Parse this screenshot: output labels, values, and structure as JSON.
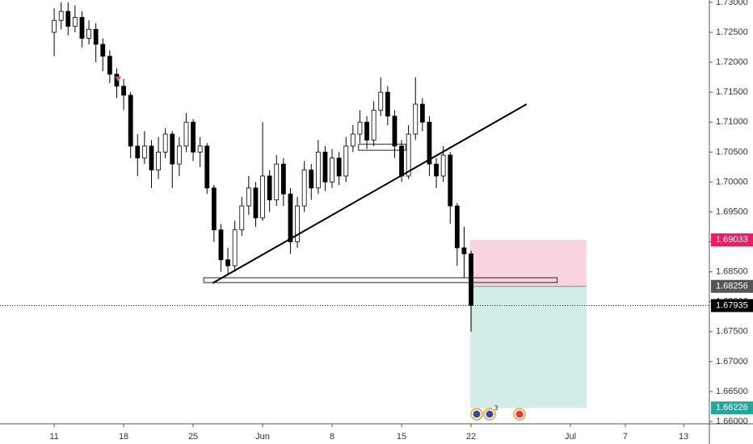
{
  "chart_data": {
    "type": "candlestick",
    "x": [
      0,
      0.5,
      1,
      1.5,
      2,
      2.5,
      3,
      3.5,
      4,
      4.5,
      5,
      5.5,
      6,
      6.5,
      7,
      7.5,
      8,
      8.5,
      9,
      9.5,
      10,
      10.5,
      11,
      11.5,
      12,
      12.5,
      13,
      13.5,
      14,
      14.5,
      15,
      15.5,
      16,
      16.5,
      17,
      17.5,
      18,
      18.5,
      19,
      19.5,
      20,
      20.5,
      21,
      21.5,
      22,
      22.5,
      23,
      23.5,
      24,
      24.5,
      25,
      25.5,
      26,
      26.5,
      27,
      27.5,
      28,
      28.5,
      29,
      29.5,
      30
    ],
    "open": [
      1.725,
      1.727,
      1.7285,
      1.726,
      1.7275,
      1.724,
      1.7255,
      1.723,
      1.721,
      1.718,
      1.716,
      1.7145,
      1.706,
      1.704,
      1.706,
      1.702,
      1.705,
      1.708,
      1.703,
      1.706,
      1.71,
      1.705,
      1.706,
      1.699,
      1.692,
      1.687,
      1.686,
      1.692,
      1.696,
      1.699,
      1.694,
      1.701,
      1.697,
      1.703,
      1.698,
      1.69,
      1.696,
      1.702,
      1.699,
      1.705,
      1.7,
      1.704,
      1.701,
      1.706,
      1.708,
      1.71,
      1.707,
      1.712,
      1.715,
      1.711,
      1.706,
      1.701,
      1.708,
      1.713,
      1.71,
      1.703,
      1.701,
      1.7045,
      1.696,
      1.689,
      1.688
    ],
    "high": [
      1.729,
      1.73,
      1.73,
      1.7295,
      1.7285,
      1.727,
      1.7265,
      1.724,
      1.722,
      1.719,
      1.7172,
      1.715,
      1.708,
      1.7085,
      1.707,
      1.7075,
      1.709,
      1.7085,
      1.7075,
      1.7115,
      1.7105,
      1.7075,
      1.7065,
      1.6995,
      1.693,
      1.689,
      1.6935,
      1.6975,
      1.701,
      1.7,
      1.71,
      1.702,
      1.7045,
      1.704,
      1.699,
      1.6975,
      1.7035,
      1.703,
      1.707,
      1.706,
      1.7055,
      1.705,
      1.7075,
      1.7095,
      1.712,
      1.711,
      1.7135,
      1.7175,
      1.716,
      1.712,
      1.707,
      1.7095,
      1.7175,
      1.714,
      1.711,
      1.704,
      1.706,
      1.705,
      1.6965,
      1.6925,
      1.6885
    ],
    "low": [
      1.721,
      1.7255,
      1.7245,
      1.725,
      1.7225,
      1.723,
      1.72,
      1.7185,
      1.7165,
      1.714,
      1.712,
      1.704,
      1.701,
      1.703,
      1.699,
      1.7005,
      1.704,
      1.699,
      1.701,
      1.705,
      1.7035,
      1.7025,
      1.698,
      1.69,
      1.685,
      1.6845,
      1.685,
      1.691,
      1.6945,
      1.6925,
      1.6935,
      1.695,
      1.696,
      1.696,
      1.688,
      1.689,
      1.695,
      1.697,
      1.698,
      1.6985,
      1.699,
      1.6995,
      1.7,
      1.705,
      1.7065,
      1.7055,
      1.706,
      1.711,
      1.7095,
      1.704,
      1.7,
      1.7005,
      1.707,
      1.7085,
      1.701,
      1.699,
      1.7,
      1.693,
      1.686,
      1.684,
      1.675
    ],
    "close": [
      1.727,
      1.7285,
      1.726,
      1.7275,
      1.724,
      1.7255,
      1.723,
      1.721,
      1.718,
      1.716,
      1.7145,
      1.706,
      1.704,
      1.706,
      1.702,
      1.705,
      1.708,
      1.703,
      1.706,
      1.71,
      1.705,
      1.706,
      1.699,
      1.692,
      1.687,
      1.686,
      1.692,
      1.696,
      1.699,
      1.694,
      1.701,
      1.697,
      1.703,
      1.698,
      1.69,
      1.696,
      1.702,
      1.699,
      1.705,
      1.7,
      1.704,
      1.701,
      1.706,
      1.708,
      1.71,
      1.707,
      1.712,
      1.715,
      1.711,
      1.706,
      1.701,
      1.708,
      1.713,
      1.71,
      1.703,
      1.701,
      1.7045,
      1.696,
      1.689,
      1.688,
      1.6794
    ],
    "xlim": [
      -3.9,
      47.15
    ],
    "xticks": [
      {
        "value": 0,
        "label": "11"
      },
      {
        "value": 5,
        "label": "18"
      },
      {
        "value": 10,
        "label": "25"
      },
      {
        "value": 15,
        "label": "Jun"
      },
      {
        "value": 20,
        "label": "8"
      },
      {
        "value": 25,
        "label": "15"
      },
      {
        "value": 30,
        "label": "22"
      },
      {
        "value": 37.15,
        "label": "Jul"
      },
      {
        "value": 41.1,
        "label": "7"
      },
      {
        "value": 45.3,
        "label": "13"
      }
    ],
    "ylim": [
      1.6596,
      1.7304
    ],
    "yticks": [
      {
        "value": 1.66,
        "label": "1.66000"
      },
      {
        "value": 1.665,
        "label": "1.66500"
      },
      {
        "value": 1.67,
        "label": "1.67000"
      },
      {
        "value": 1.675,
        "label": "1.67500"
      },
      {
        "value": 1.68,
        "label": "1.68000"
      },
      {
        "value": 1.685,
        "label": "1.68500"
      },
      {
        "value": 1.69,
        "label": "1.69000"
      },
      {
        "value": 1.695,
        "label": "1.69500"
      },
      {
        "value": 1.7,
        "label": "1.70000"
      },
      {
        "value": 1.705,
        "label": "1.70500"
      },
      {
        "value": 1.71,
        "label": "1.71000"
      },
      {
        "value": 1.715,
        "label": "1.71500"
      },
      {
        "value": 1.72,
        "label": "1.72000"
      },
      {
        "value": 1.725,
        "label": "1.72500"
      },
      {
        "value": 1.73,
        "label": "1.73000"
      }
    ],
    "trend_line": {
      "x": [
        11.4,
        34.0
      ],
      "y": [
        1.6831,
        1.713
      ]
    },
    "zones": [
      {
        "x": [
          10.76,
          36.2
        ],
        "y": [
          1.6832,
          1.684
        ]
      },
      {
        "x": [
          21.9,
          25.3
        ],
        "y": [
          1.7053,
          1.7063
        ]
      }
    ],
    "marker": {
      "x": 4.6,
      "y": 1.7172,
      "color": "#e0574f"
    },
    "position": {
      "x": [
        29.94,
        38.3
      ],
      "stop": 1.69033,
      "entry": 1.68256,
      "target": 1.66226
    },
    "last_price": 1.67935,
    "event_count": "3"
  }
}
